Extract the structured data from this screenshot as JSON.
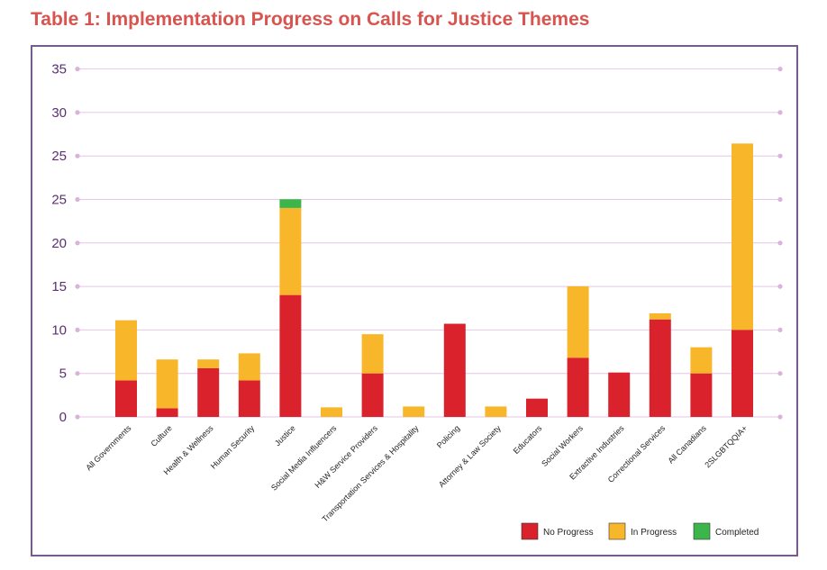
{
  "header": {
    "title": "Table 1: Implementation Progress on Calls for Justice Themes"
  },
  "chart_data": {
    "type": "bar",
    "stacked": true,
    "categories": [
      "All Governments",
      "Culture",
      "Health & Wellness",
      "Human Security",
      "Justice",
      "Social Media Influencers",
      "H&W Service Providers",
      "Transportation Services & Hospitality",
      "Policing",
      "Attorney & Law Society",
      "Educators",
      "Social Workers",
      "Extractive Industries",
      "Correctional Services",
      "All Canadians",
      "2SLGBTQQIA+"
    ],
    "series": [
      {
        "name": "No Progress",
        "color": "#d9222c",
        "values": [
          4.2,
          1,
          5.6,
          4.2,
          14,
          0,
          5,
          0,
          10.7,
          0,
          2.1,
          6.8,
          5.1,
          11.2,
          5,
          10
        ]
      },
      {
        "name": "In Progress",
        "color": "#f8b72a",
        "values": [
          6.9,
          5.6,
          1,
          3.1,
          10,
          1.1,
          4.5,
          1.2,
          0,
          1.2,
          0,
          8.2,
          0,
          0.7,
          3,
          21.4
        ]
      },
      {
        "name": "Completed",
        "color": "#3cb54a",
        "values": [
          0,
          0,
          0,
          0,
          1,
          0,
          0,
          0,
          0,
          0,
          0,
          0,
          0,
          0,
          0,
          0
        ]
      }
    ],
    "yticks": [
      "0",
      "5",
      "10",
      "15",
      "20",
      "25",
      "25",
      "30",
      "35"
    ],
    "ylim": [
      0,
      35
    ],
    "grid": true,
    "legend": "bottom-right",
    "colors": {
      "grid": "#e6c6e6",
      "axis_text": "#5a3070",
      "frame": "#7a5a8c",
      "title": "#d9534f"
    }
  }
}
